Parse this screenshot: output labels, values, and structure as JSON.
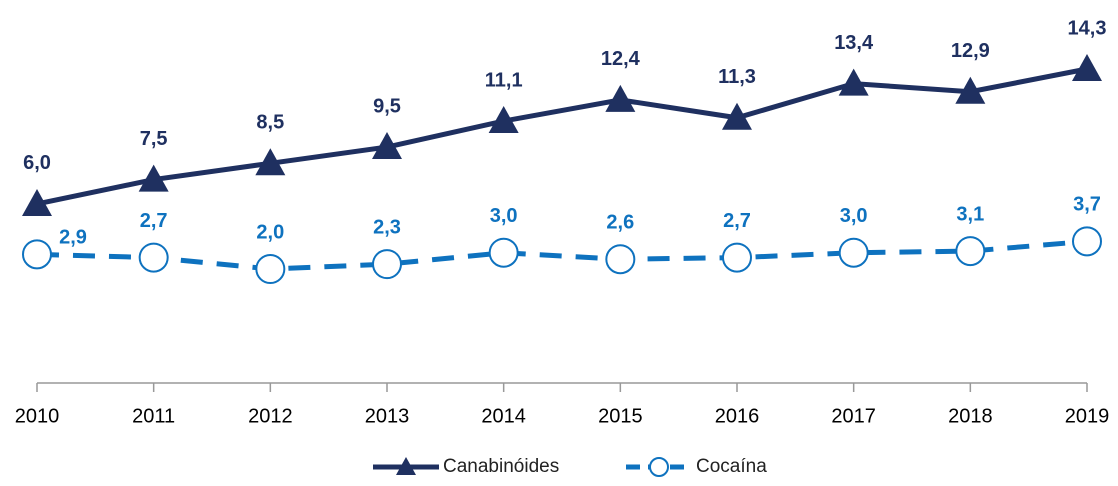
{
  "chart_data": {
    "type": "line",
    "categories": [
      "2010",
      "2011",
      "2012",
      "2013",
      "2014",
      "2015",
      "2016",
      "2017",
      "2018",
      "2019"
    ],
    "series": [
      {
        "name": "Canabinóides",
        "color": "#1f3060",
        "marker": "triangle",
        "dash": false,
        "values": [
          6.0,
          7.5,
          8.5,
          9.5,
          11.1,
          12.4,
          11.3,
          13.4,
          12.9,
          14.3
        ],
        "value_labels": [
          "6,0",
          "7,5",
          "8,5",
          "9,5",
          "11,1",
          "12,4",
          "11,3",
          "13,4",
          "12,9",
          "14,3"
        ]
      },
      {
        "name": "Cocaína",
        "color": "#0e72bf",
        "marker": "circle",
        "dash": true,
        "values": [
          2.9,
          2.7,
          2.0,
          2.3,
          3.0,
          2.6,
          2.7,
          3.0,
          3.1,
          3.7
        ],
        "value_labels": [
          "2,9",
          "2,7",
          "2,0",
          "2,3",
          "3,0",
          "2,6",
          "2,7",
          "3,0",
          "3,1",
          "3,7"
        ]
      }
    ],
    "legend": "bottom"
  }
}
